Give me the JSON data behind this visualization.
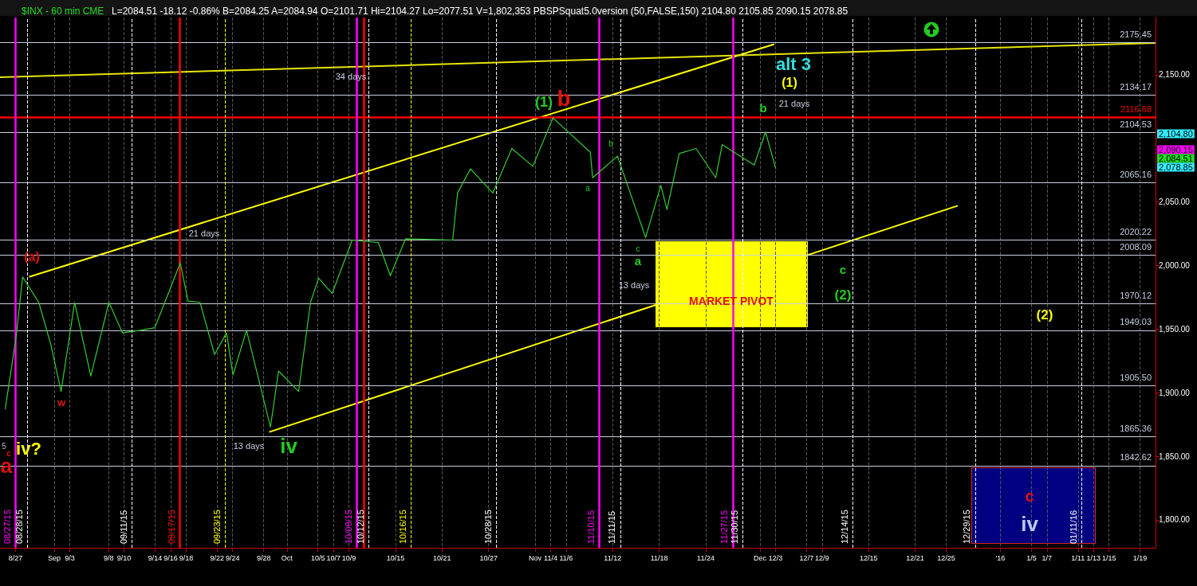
{
  "chart_data": {
    "type": "line",
    "title": "$INX - 60 min CME",
    "subtitle": "L=2084.51 -18.12 -0.86% B=2084.25 A=2084.94 O=2101.71 Hi=2104.27 Lo=2077.51 V=1,802,353 PBSPSquat5.0version (50,FALSE,150) 2104.80 2105.85 2090.15 2078.85",
    "xlim": [
      "2015-08-25",
      "2016-01-21"
    ],
    "xticks": [
      {
        "value": "2015-08-27",
        "label": "8/27"
      },
      {
        "value": "2015-09-01",
        "label": "Sep"
      },
      {
        "value": "2015-09-03",
        "label": "9/3"
      },
      {
        "value": "2015-09-08",
        "label": "9/8"
      },
      {
        "value": "2015-09-10",
        "label": "9/10"
      },
      {
        "value": "2015-09-14",
        "label": "9/14"
      },
      {
        "value": "2015-09-16",
        "label": "9/16"
      },
      {
        "value": "2015-09-18",
        "label": "9/18"
      },
      {
        "value": "2015-09-22",
        "label": "9/22"
      },
      {
        "value": "2015-09-24",
        "label": "9/24"
      },
      {
        "value": "2015-09-28",
        "label": "9/28"
      },
      {
        "value": "2015-10-01",
        "label": "Oct"
      },
      {
        "value": "2015-10-05",
        "label": "10/5"
      },
      {
        "value": "2015-10-07",
        "label": "10/7"
      },
      {
        "value": "2015-10-09",
        "label": "10/9"
      },
      {
        "value": "2015-10-15",
        "label": "10/15"
      },
      {
        "value": "2015-10-21",
        "label": "10/21"
      },
      {
        "value": "2015-10-27",
        "label": "10/27"
      },
      {
        "value": "2015-11-02",
        "label": "Nov"
      },
      {
        "value": "2015-11-04",
        "label": "11/4"
      },
      {
        "value": "2015-11-06",
        "label": "11/6"
      },
      {
        "value": "2015-11-12",
        "label": "11/12"
      },
      {
        "value": "2015-11-18",
        "label": "11/18"
      },
      {
        "value": "2015-11-24",
        "label": "11/24"
      },
      {
        "value": "2015-12-01",
        "label": "Dec"
      },
      {
        "value": "2015-12-03",
        "label": "12/3"
      },
      {
        "value": "2015-12-07",
        "label": "12/7"
      },
      {
        "value": "2015-12-09",
        "label": "12/9"
      },
      {
        "value": "2015-12-15",
        "label": "12/15"
      },
      {
        "value": "2015-12-21",
        "label": "12/21"
      },
      {
        "value": "2015-12-25",
        "label": "12/25"
      },
      {
        "value": "2016-01-01",
        "label": "'16"
      },
      {
        "value": "2016-01-05",
        "label": "1/5"
      },
      {
        "value": "2016-01-07",
        "label": "1/7"
      },
      {
        "value": "2016-01-11",
        "label": "1/11"
      },
      {
        "value": "2016-01-13",
        "label": "1/13"
      },
      {
        "value": "2016-01-15",
        "label": "1/15"
      },
      {
        "value": "2016-01-19",
        "label": "1/19"
      }
    ],
    "ylim": [
      1778,
      2195
    ],
    "yticks": [
      {
        "value": 1800,
        "label": "1,800.00"
      },
      {
        "value": 1850,
        "label": "1,850.00"
      },
      {
        "value": 1900,
        "label": "1,900.00"
      },
      {
        "value": 1950,
        "label": "1,950.00"
      },
      {
        "value": 2000,
        "label": "2,000.00"
      },
      {
        "value": 2050,
        "label": "2,050.00"
      },
      {
        "value": 2100,
        "label": null
      },
      {
        "value": 2150,
        "label": "2,150.00"
      }
    ],
    "grid": "x",
    "series": [
      {
        "color": "#33cc33",
        "x": [
          "2015-08-25T16:00",
          "2015-08-27T02:00",
          "2015-08-27T22:00",
          "2015-08-30T00:00",
          "2015-08-31T13:00",
          "2015-09-01T21:00",
          "2015-09-03T15:00",
          "2015-09-05T17:00",
          "2015-09-08T01:00",
          "2015-09-09T19:00",
          "2015-09-12T02:00",
          "2015-09-13T23:00",
          "2015-09-17T06:00",
          "2015-09-18T06:00",
          "2015-09-19T19:00",
          "2015-09-21T16:00",
          "2015-09-23T05:00",
          "2015-09-24T01:00",
          "2015-09-25T19:00",
          "2015-09-28T21:00",
          "2015-09-29T22:00",
          "2015-10-02T12:00",
          "2015-10-04T01:00",
          "2015-10-05T02:00",
          "2015-10-06T20:00",
          "2015-10-09T10:00",
          "2015-10-12T19:00",
          "2015-10-14T08:00",
          "2015-10-16T07:00",
          "2015-10-22T09:00",
          "2015-10-23T00:00",
          "2015-10-24T16:00",
          "2015-10-27T13:00",
          "2015-10-30T00:00",
          "2015-11-01T17:00",
          "2015-11-04T07:00",
          "2015-11-09T03:00",
          "2015-11-09T10:00",
          "2015-11-12T15:00",
          "2015-11-16T06:00",
          "2015-11-18T05:00",
          "2015-11-19T00:00",
          "2015-11-20T14:00",
          "2015-11-22T18:00",
          "2015-11-25T07:00",
          "2015-11-26T03:00",
          "2015-11-30T06:00",
          "2015-12-01T17:00",
          "2015-12-03T01:00"
        ],
        "values": [
          1887,
          1944,
          1991,
          1971,
          1938,
          1901,
          1971,
          1913,
          1971,
          1947,
          1949,
          1951,
          2002,
          1972,
          1971,
          1930,
          1947,
          1914,
          1949,
          1873,
          1917,
          1901,
          1971,
          1990,
          1978,
          2020,
          2018,
          1992,
          2021,
          2020,
          2057,
          2076,
          2057,
          2092,
          2078,
          2116,
          2089,
          2069,
          2086,
          2022,
          2063,
          2044,
          2088,
          2092,
          2069,
          2095,
          2079,
          2105,
          2076
        ]
      },
      {
        "color": "#ffff00",
        "x": [
          "2015-08-28T18:00",
          "2015-12-02T20:00"
        ],
        "values": [
          1991,
          2174
        ]
      },
      {
        "color": "#ffff00",
        "x": [
          "2015-09-28T17:00",
          "2015-12-26T12:00"
        ],
        "values": [
          1869,
          2047
        ]
      },
      {
        "color": "#e6e600",
        "x": [
          "2015-08-25",
          "2016-01-21"
        ],
        "values": [
          2148,
          2175
        ]
      }
    ],
    "ref_lines": [
      {
        "axis": "y",
        "value": 2175.45,
        "label": "2175.45",
        "color": "#c8d0e0"
      },
      {
        "axis": "y",
        "value": 2134.17,
        "label": "2134.17",
        "color": "#c8d0e0"
      },
      {
        "axis": "y",
        "value": 2116.68,
        "label": "2116.68",
        "color": "#ff0000"
      },
      {
        "axis": "y",
        "value": 2104.53,
        "label": "2104.53",
        "color": "#c8d0e0"
      },
      {
        "axis": "y",
        "value": 2065.16,
        "label": "2065.16",
        "color": "#c8d0e0"
      },
      {
        "axis": "y",
        "value": 2020.22,
        "label": "2020.22",
        "color": "#c8d0e0"
      },
      {
        "axis": "y",
        "value": 2008.09,
        "label": "2008.09",
        "color": "#c8d0e0"
      },
      {
        "axis": "y",
        "value": 1970.12,
        "label": "1970.12",
        "color": "#c8d0e0"
      },
      {
        "axis": "y",
        "value": 1949.03,
        "label": "1949.03",
        "color": "#c8d0e0"
      },
      {
        "axis": "y",
        "value": 1905.5,
        "label": "1905.50",
        "color": "#c8d0e0"
      },
      {
        "axis": "y",
        "value": 1865.36,
        "label": "1865.36",
        "color": "#c8d0e0"
      },
      {
        "axis": "y",
        "value": 1842.62,
        "label": "1842.62",
        "color": "#c8d0e0"
      },
      {
        "axis": "x",
        "value": "2015-08-27",
        "label": "08/27/15",
        "color": "#ff00ff"
      },
      {
        "axis": "x",
        "value": "2015-08-28T12:00",
        "label": "08/28/15",
        "color": "#ffffff",
        "line_style": "dashed"
      },
      {
        "axis": "x",
        "value": "2015-09-11",
        "label": "09/11/15",
        "color": "#ffffff",
        "line_style": "dashed"
      },
      {
        "axis": "x",
        "value": "2015-09-17T05:00",
        "label": "09/17/15",
        "color": "#ff0000"
      },
      {
        "axis": "x",
        "value": "2015-09-23",
        "label": "09/23/15",
        "color": "#ffff00",
        "line_style": "dashed"
      },
      {
        "axis": "x",
        "value": "2015-10-10",
        "label": "10/09/15",
        "color": "#ff00ff"
      },
      {
        "axis": "x",
        "value": "2015-10-10T23:00",
        "color": "#ff0000"
      },
      {
        "axis": "x",
        "value": "2015-10-11T14:00",
        "label": "10/12/15",
        "color": "#ffffff",
        "line_style": "dashed"
      },
      {
        "axis": "x",
        "value": "2015-10-17",
        "label": "10/16/15",
        "color": "#ffff00",
        "line_style": "dashed"
      },
      {
        "axis": "x",
        "value": "2015-10-28",
        "label": "10/28/15",
        "color": "#ffffff",
        "line_style": "dashed"
      },
      {
        "axis": "x",
        "value": "2015-11-10T06:00",
        "label": "11/10/15",
        "color": "#ff00ff"
      },
      {
        "axis": "x",
        "value": "2015-11-13",
        "label": "11/11/15",
        "color": "#ffffff",
        "line_style": "dashed"
      },
      {
        "axis": "x",
        "value": "2015-11-27T12:00",
        "label": "11/27/15",
        "color": "#ff00ff"
      },
      {
        "axis": "x",
        "value": "2015-11-28T18:00",
        "label": "11/30/15",
        "color": "#ffffff",
        "line_style": "dashed"
      },
      {
        "axis": "x",
        "value": "2015-12-13",
        "label": "12/14/15",
        "color": "#ffffff",
        "line_style": "dashed"
      },
      {
        "axis": "x",
        "value": "2015-12-28T18:00",
        "label": "12/29/15",
        "color": "#ffffff",
        "line_style": "dashed"
      },
      {
        "axis": "x",
        "value": "2016-01-11T12:00",
        "label": "01/11/16",
        "color": "#ffffff",
        "line_style": "dashed"
      }
    ],
    "annotations": [
      "(a)",
      "w",
      "5",
      "c",
      "a",
      "iv?",
      "21 days",
      "13 days",
      "iv",
      "34 days",
      "(1)",
      "b",
      "a",
      "b",
      "c",
      "a",
      "13 days",
      "MARKET PIVOT",
      "alt 3",
      "(1)",
      "21 days",
      "b",
      "c",
      "(2)",
      "(2)",
      "c",
      "iv",
      "2,104.80",
      "2,090.15",
      "2,084.51",
      "2,078.85"
    ]
  }
}
